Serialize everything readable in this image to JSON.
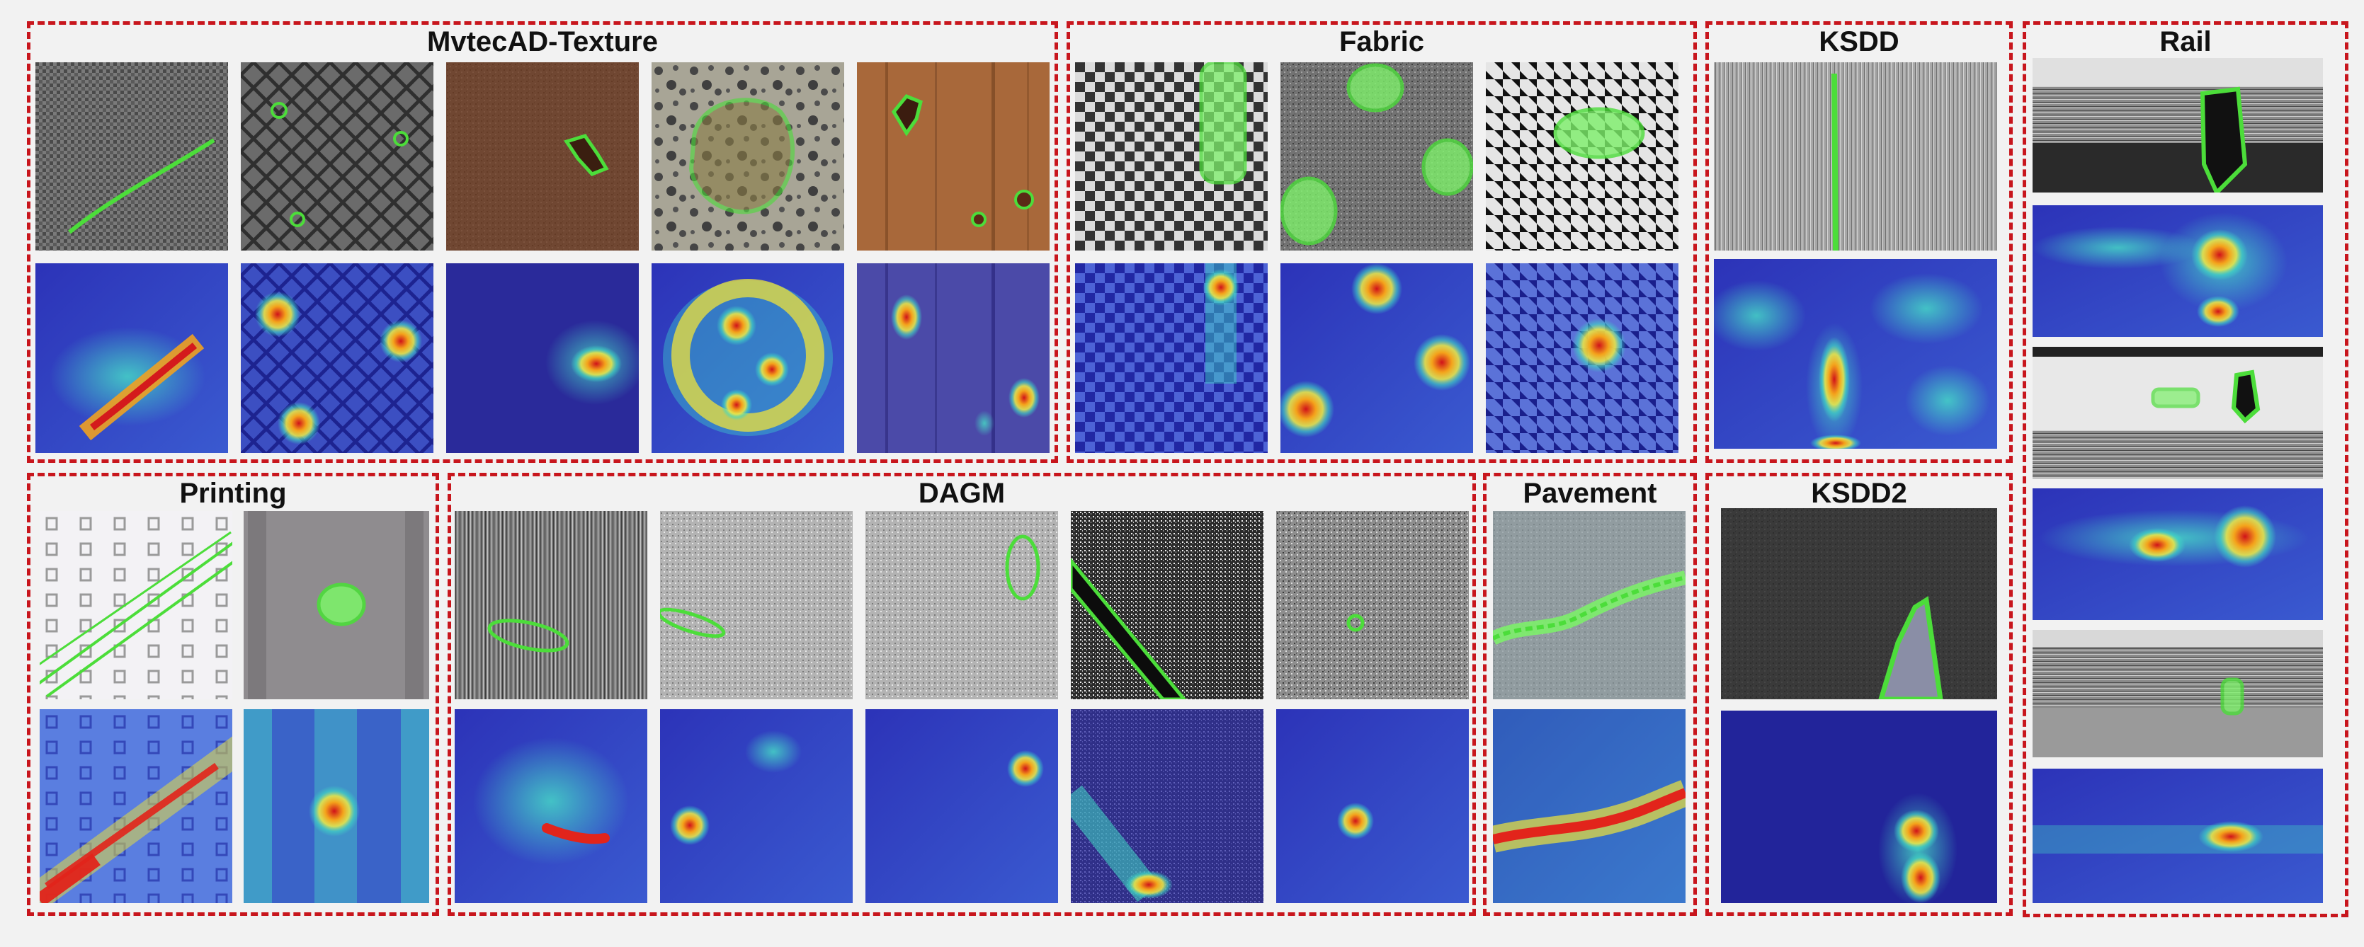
{
  "groups": [
    {
      "id": "mvtec",
      "title": "MvtecAD-Texture"
    },
    {
      "id": "fabric",
      "title": "Fabric"
    },
    {
      "id": "ksdd",
      "title": "KSDD"
    },
    {
      "id": "rail",
      "title": "Rail"
    },
    {
      "id": "printing",
      "title": "Printing"
    },
    {
      "id": "dagm",
      "title": "DAGM"
    },
    {
      "id": "pavement",
      "title": "Pavement"
    },
    {
      "id": "ksdd2",
      "title": "KSDD2"
    }
  ],
  "colors": {
    "border": "#c8161d",
    "mask_outline": "#4cdd3a",
    "heat_low": "#2a2fb8",
    "heat_mid": "#3fd6c0",
    "heat_high": "#e2241b"
  }
}
